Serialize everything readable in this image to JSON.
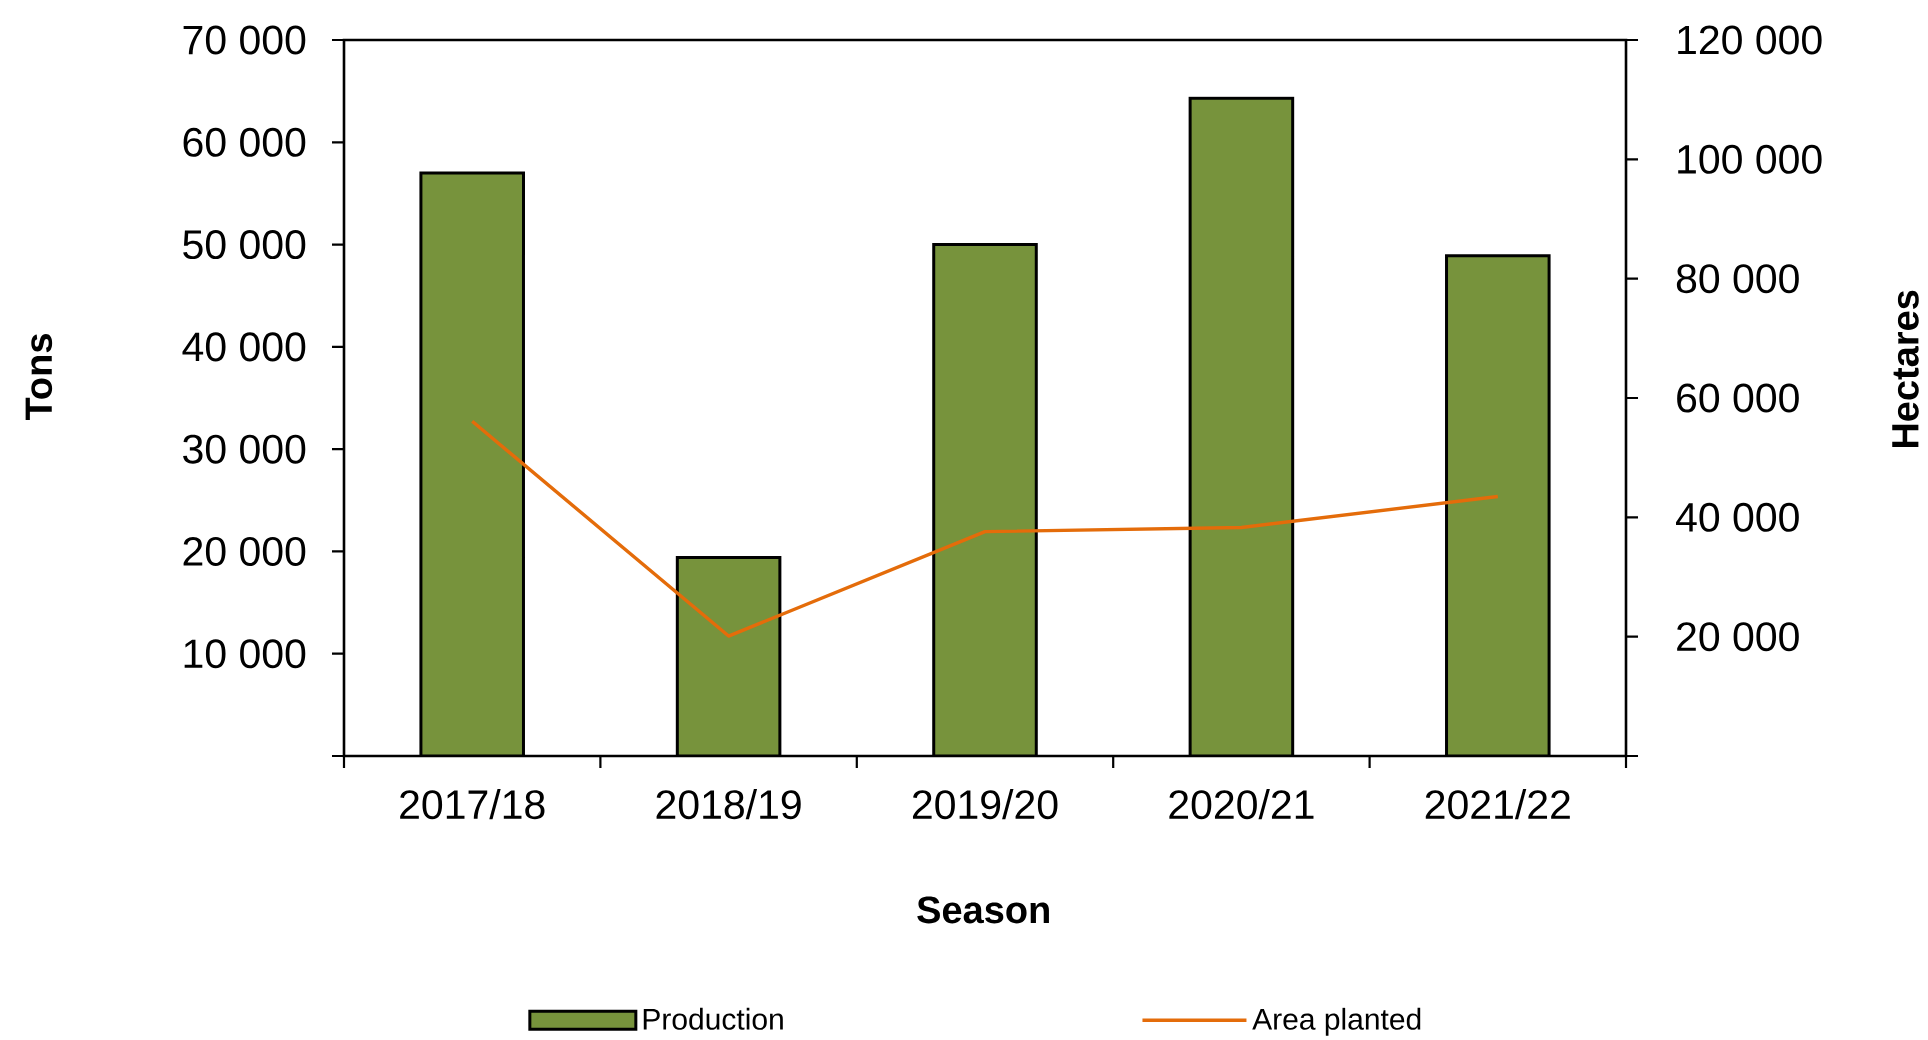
{
  "chart_data": {
    "type": "bar",
    "xlabel": "Season",
    "ylabel": "Tons",
    "y2label": "Hectares",
    "categories": [
      "2017/18",
      "2018/19",
      "2019/20",
      "2020/21",
      "2021/22"
    ],
    "series": [
      {
        "name": "Production",
        "type": "bar",
        "color": "#77933c",
        "values": [
          57000,
          19400,
          50000,
          64300,
          48900
        ]
      },
      {
        "name": "Area planted",
        "type": "line",
        "axis": "y2",
        "color": "#e46c0a",
        "values": [
          56100,
          20100,
          37600,
          38300,
          43500
        ]
      }
    ],
    "ylim": [
      0,
      70000
    ],
    "yticks": [
      {
        "value": 0,
        "label": null
      },
      {
        "value": 10000,
        "label": "10 000"
      },
      {
        "value": 20000,
        "label": "20 000"
      },
      {
        "value": 30000,
        "label": "30 000"
      },
      {
        "value": 40000,
        "label": "40 000"
      },
      {
        "value": 50000,
        "label": "50 000"
      },
      {
        "value": 60000,
        "label": "60 000"
      },
      {
        "value": 70000,
        "label": "70 000"
      }
    ],
    "y2lim": [
      0,
      120000
    ],
    "y2ticks": [
      {
        "value": 0,
        "label": null
      },
      {
        "value": 20000,
        "label": "20 000"
      },
      {
        "value": 40000,
        "label": "40 000"
      },
      {
        "value": 60000,
        "label": "60 000"
      },
      {
        "value": 80000,
        "label": "80 000"
      },
      {
        "value": 100000,
        "label": "100 000"
      },
      {
        "value": 120000,
        "label": "120 000"
      }
    ],
    "legend": "bottom",
    "grid": false
  }
}
